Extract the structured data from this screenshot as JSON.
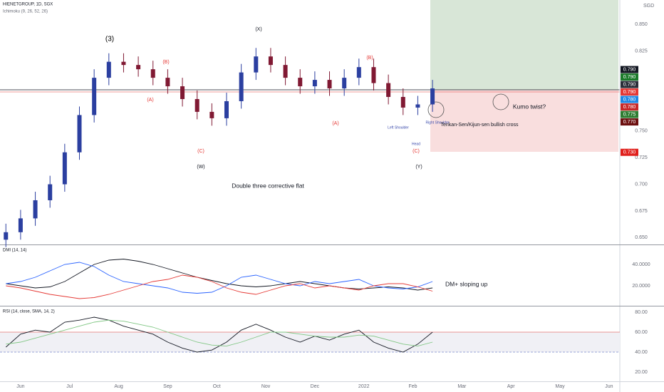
{
  "chart_data": [
    {
      "type": "candlestick",
      "title": "HIENETGROUP, 1D, SGX",
      "subtitle": "Ichimoku (9, 26, 52, 26)",
      "currency": "SGD",
      "x": [
        -0.3,
        0,
        0.3,
        0.6,
        0.9,
        1.2,
        1.5,
        1.8,
        2.1,
        2.4,
        2.7,
        3,
        3.3,
        3.6,
        3.9,
        4.2,
        4.5,
        4.8,
        5.1,
        5.4,
        5.7,
        6,
        6.3,
        6.6,
        6.9,
        7.2,
        7.5,
        7.8,
        8.1,
        8.4
      ],
      "open": [
        0.648,
        0.655,
        0.668,
        0.685,
        0.7,
        0.73,
        0.765,
        0.8,
        0.815,
        0.812,
        0.808,
        0.8,
        0.792,
        0.78,
        0.768,
        0.762,
        0.778,
        0.805,
        0.82,
        0.812,
        0.8,
        0.792,
        0.798,
        0.79,
        0.8,
        0.81,
        0.795,
        0.782,
        0.772,
        0.775
      ],
      "high": [
        0.663,
        0.676,
        0.693,
        0.708,
        0.738,
        0.773,
        0.808,
        0.823,
        0.823,
        0.82,
        0.816,
        0.808,
        0.8,
        0.788,
        0.776,
        0.786,
        0.813,
        0.828,
        0.828,
        0.82,
        0.808,
        0.806,
        0.806,
        0.808,
        0.818,
        0.818,
        0.803,
        0.79,
        0.783,
        0.798
      ],
      "low": [
        0.641,
        0.648,
        0.661,
        0.678,
        0.693,
        0.723,
        0.758,
        0.793,
        0.805,
        0.801,
        0.793,
        0.785,
        0.773,
        0.761,
        0.755,
        0.755,
        0.771,
        0.798,
        0.805,
        0.793,
        0.785,
        0.785,
        0.783,
        0.783,
        0.793,
        0.788,
        0.775,
        0.765,
        0.765,
        0.768
      ],
      "close": [
        0.655,
        0.668,
        0.685,
        0.7,
        0.73,
        0.765,
        0.8,
        0.815,
        0.812,
        0.808,
        0.8,
        0.792,
        0.78,
        0.768,
        0.762,
        0.778,
        0.805,
        0.82,
        0.812,
        0.8,
        0.792,
        0.798,
        0.79,
        0.8,
        0.81,
        0.795,
        0.782,
        0.772,
        0.775,
        0.79
      ],
      "up_color": "#2b3fa0",
      "down_color": "#801933",
      "xlim": [
        -0.42,
        12.22
      ],
      "ylim": [
        0.6435,
        0.873
      ],
      "yticks": [
        {
          "value": 0.85,
          "label": "0.850"
        },
        {
          "value": 0.825,
          "label": "0.825"
        },
        {
          "value": 0.75,
          "label": "0.750"
        },
        {
          "value": 0.725,
          "label": "0.725"
        },
        {
          "value": 0.7,
          "label": "0.700"
        },
        {
          "value": 0.675,
          "label": "0.675"
        },
        {
          "value": 0.65,
          "label": "0.650"
        }
      ],
      "price_labels": [
        {
          "value": 0.79,
          "label": "0.790",
          "color": "#131722"
        },
        {
          "value": 0.79,
          "label": "0.790",
          "color": "#1b7a2a"
        },
        {
          "value": 0.79,
          "label": "0.790",
          "color": "#2a2e39"
        },
        {
          "value": 0.79,
          "label": "0.790",
          "color": "#e53935"
        },
        {
          "value": 0.78,
          "label": "0.780",
          "color": "#1e88e5"
        },
        {
          "value": 0.78,
          "label": "0.780",
          "color": "#c62828"
        },
        {
          "value": 0.775,
          "label": "0.775",
          "color": "#2e7d32"
        },
        {
          "value": 0.77,
          "label": "0.770",
          "color": "#6d1010"
        },
        {
          "value": 0.73,
          "label": "0.730",
          "color": "#e0201c"
        }
      ],
      "annotations": [
        "(3)",
        "(X)",
        "(B)",
        "(A)",
        "(C)",
        "(W)",
        "(B)",
        "(A)",
        "Left Shoulder",
        "Head",
        "(C)",
        "(Y)",
        "Right Shoulder",
        "Tenkan-Sen/Kijun-sen bullish cross",
        "Kumo twist?",
        "Double three corrective flat"
      ]
    },
    {
      "type": "line",
      "title": "DMI (14, 14)",
      "annotation": "DM+ sloping up",
      "x": [
        -0.3,
        0,
        0.3,
        0.6,
        0.9,
        1.2,
        1.5,
        1.8,
        2.1,
        2.4,
        2.7,
        3,
        3.3,
        3.6,
        3.9,
        4.2,
        4.5,
        4.8,
        5.1,
        5.4,
        5.7,
        6,
        6.3,
        6.6,
        6.9,
        7.2,
        7.5,
        7.8,
        8.1,
        8.4
      ],
      "series": [
        {
          "color": "#131722",
          "values": [
            22,
            20,
            18,
            19,
            24,
            32,
            40,
            44,
            45,
            43,
            40,
            36,
            32,
            28,
            25,
            22,
            20,
            19,
            20,
            22,
            24,
            22,
            20,
            18,
            17,
            18,
            19,
            18,
            16,
            18
          ]
        },
        {
          "color": "#2962ff",
          "values": [
            22,
            24,
            28,
            34,
            40,
            42,
            38,
            30,
            24,
            22,
            20,
            18,
            14,
            13,
            14,
            20,
            28,
            30,
            26,
            22,
            20,
            24,
            22,
            24,
            26,
            20,
            18,
            17,
            19,
            24
          ]
        },
        {
          "color": "#e53935",
          "values": [
            20,
            18,
            15,
            12,
            10,
            8,
            9,
            12,
            16,
            20,
            24,
            26,
            30,
            28,
            24,
            18,
            14,
            12,
            16,
            20,
            22,
            18,
            20,
            18,
            16,
            20,
            22,
            22,
            19,
            15
          ]
        }
      ],
      "xlim": [
        -0.42,
        12.22
      ],
      "ylim": [
        2,
        57.3
      ],
      "yticks": [
        {
          "value": 40,
          "label": "40.0000"
        },
        {
          "value": 20,
          "label": "20.0000"
        }
      ]
    },
    {
      "type": "line",
      "title": "RSI (14, close, SMA, 14, 2)",
      "band": [
        40,
        60
      ],
      "x": [
        -0.3,
        0,
        0.3,
        0.6,
        0.9,
        1.2,
        1.5,
        1.8,
        2.1,
        2.4,
        2.7,
        3,
        3.3,
        3.6,
        3.9,
        4.2,
        4.5,
        4.8,
        5.1,
        5.4,
        5.7,
        6,
        6.3,
        6.6,
        6.9,
        7.2,
        7.5,
        7.8,
        8.1,
        8.4
      ],
      "series": [
        {
          "color": "#131722",
          "values": [
            45,
            58,
            62,
            60,
            70,
            72,
            75,
            72,
            66,
            62,
            58,
            50,
            44,
            40,
            42,
            50,
            62,
            68,
            62,
            55,
            50,
            56,
            52,
            58,
            62,
            50,
            44,
            40,
            48,
            60
          ]
        },
        {
          "color": "#81c784",
          "values": [
            48,
            50,
            54,
            58,
            62,
            66,
            70,
            72,
            71,
            68,
            65,
            60,
            55,
            50,
            47,
            46,
            50,
            55,
            60,
            60,
            58,
            56,
            55,
            55,
            57,
            56,
            52,
            48,
            46,
            50
          ]
        }
      ],
      "xlim": [
        -0.42,
        12.22
      ],
      "ylim": [
        10.7,
        85.7
      ],
      "yticks": [
        {
          "value": 80,
          "label": "80.00"
        },
        {
          "value": 60,
          "label": "60.00"
        },
        {
          "value": 40,
          "label": "40.00"
        },
        {
          "value": 20,
          "label": "20.00"
        }
      ],
      "xticks": [
        {
          "value": 0,
          "label": "Jun"
        },
        {
          "value": 1,
          "label": "Jul"
        },
        {
          "value": 2,
          "label": "Aug"
        },
        {
          "value": 3,
          "label": "Sep"
        },
        {
          "value": 4,
          "label": "Oct"
        },
        {
          "value": 5,
          "label": "Nov"
        },
        {
          "value": 6,
          "label": "Dec"
        },
        {
          "value": 7,
          "label": "2022"
        },
        {
          "value": 8,
          "label": "Feb"
        },
        {
          "value": 9,
          "label": "Mar"
        },
        {
          "value": 10,
          "label": "Apr"
        },
        {
          "value": 11,
          "label": "May"
        },
        {
          "value": 12,
          "label": "Jun"
        }
      ]
    }
  ]
}
